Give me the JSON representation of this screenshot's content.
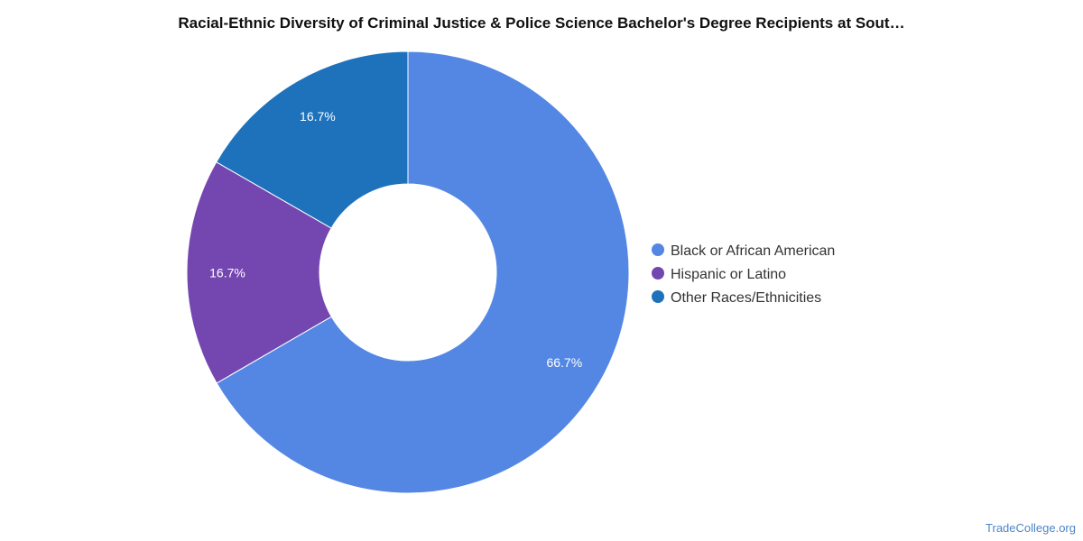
{
  "chart_data": {
    "type": "pie",
    "title": "Racial-Ethnic Diversity of Criminal Justice & Police Science Bachelor's Degree Recipients at Sout…",
    "categories": [
      "Black or African American",
      "Hispanic or Latino",
      "Other Races/Ethnicities"
    ],
    "values": [
      66.7,
      16.7,
      16.7
    ],
    "labels": [
      "66.7%",
      "16.7%",
      "16.7%"
    ],
    "colors": [
      "#5487e3",
      "#7447b0",
      "#1e72bc"
    ],
    "donut": true,
    "legend_position": "right"
  },
  "watermark": "TradeCollege.org"
}
